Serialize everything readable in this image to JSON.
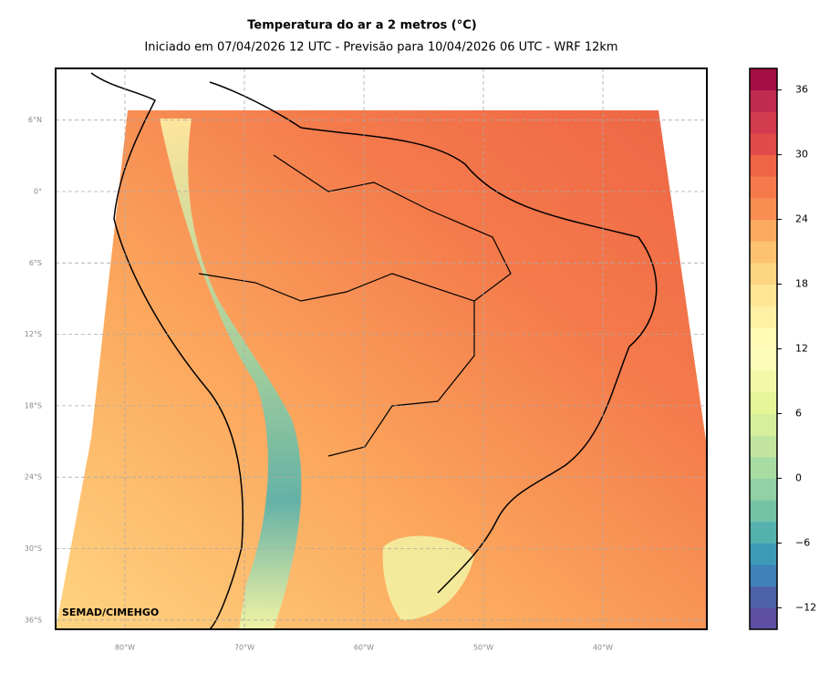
{
  "header": {
    "title": "Temperatura do ar a 2 metros (°C)",
    "subtitle": "Iniciado em 07/04/2026 12 UTC - Previsão para 10/04/2026 06 UTC - WRF 12km"
  },
  "map": {
    "lat_ticks": [
      {
        "value": 6,
        "label": "6°N"
      },
      {
        "value": 0,
        "label": "0°"
      },
      {
        "value": -6,
        "label": "6°S"
      },
      {
        "value": -12,
        "label": "12°S"
      },
      {
        "value": -18,
        "label": "18°S"
      },
      {
        "value": -24,
        "label": "24°S"
      },
      {
        "value": -30,
        "label": "30°S"
      },
      {
        "value": -36,
        "label": "36°S"
      }
    ],
    "lon_ticks": [
      {
        "value": -80,
        "label": "80°W"
      },
      {
        "value": -70,
        "label": "70°W"
      },
      {
        "value": -60,
        "label": "60°W"
      },
      {
        "value": -50,
        "label": "50°W"
      },
      {
        "value": -40,
        "label": "40°W"
      }
    ],
    "grid": true,
    "credit": "SEMAD/CIMEHGO"
  },
  "colorbar": {
    "lim": [
      -14,
      38
    ],
    "ticks": [
      36,
      30,
      24,
      18,
      12,
      6,
      0,
      {
        "value": -6,
        "label": "−6"
      },
      {
        "value": -12,
        "label": "−12"
      }
    ],
    "colors": [
      "#5e4fa2",
      "#4e62ab",
      "#3f81b9",
      "#3d9bb8",
      "#54b1ad",
      "#74c3a6",
      "#92d1a4",
      "#a9dca3",
      "#c2e69f",
      "#d7ef9c",
      "#e6f598",
      "#f1f9a9",
      "#fbfdb9",
      "#fffbb6",
      "#fff0a4",
      "#fee593",
      "#fed582",
      "#fdc271",
      "#fcaa5f",
      "#f98e52",
      "#f47a4b",
      "#ee6445",
      "#e14b48",
      "#d33b4e",
      "#c02b4f",
      "#a50e45"
    ]
  }
}
